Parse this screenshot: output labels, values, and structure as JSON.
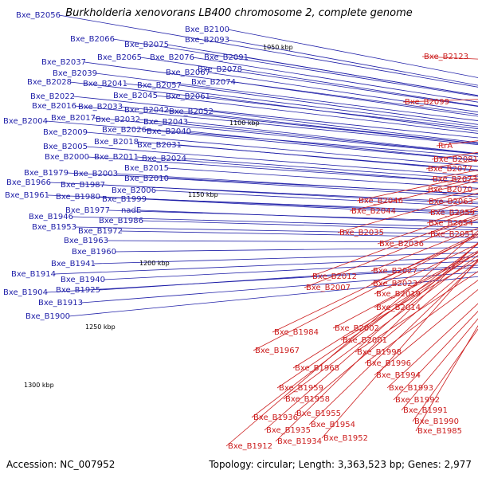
{
  "title": "Burkholderia xenovorans LB400 chromosome 2, complete genome",
  "accession": "Accession: NC_007952",
  "topology": "Topology: circular; Length: 3,363,523 bp; Genes: 2,977",
  "colors": {
    "forward": "#1f1fa8",
    "reverse": "#cc1d1d",
    "backbone": "#9a9a9a"
  },
  "ticks": [
    "1050 kbp",
    "1100 kbp",
    "1150 kbp",
    "1200 kbp",
    "1250 kbp",
    "1300 kbp"
  ],
  "forward_labels": [
    "Bxe_B2056",
    "Bxe_B2100",
    "Bxe_B2066",
    "Bxe_B2093",
    "Bxe_B2075",
    "Bxe_B2091",
    "Bxe_B2065",
    "Bxe_B2076",
    "Bxe_B2037",
    "Bxe_B2078",
    "Bxe_B2039",
    "Bxe_B2067",
    "Bxe_B2074",
    "Bxe_B2028",
    "Bxe_B2041",
    "Bxe_B2057",
    "Bxe_B2022",
    "Bxe_B2045",
    "Bxe_B2061",
    "Bxe_B2016",
    "Bxe_B2033",
    "Bxe_B2042",
    "Bxe_B2052",
    "Bxe_B2004",
    "Bxe_B2017",
    "Bxe_B2032",
    "Bxe_B2043",
    "Bxe_B2026",
    "Bxe_B2040",
    "Bxe_B2009",
    "Bxe_B2018",
    "Bxe_B2031",
    "Bxe_B2005",
    "Bxe_B2024",
    "Bxe_B2000",
    "Bxe_B2011",
    "Bxe_B2015",
    "Bxe_B1979",
    "Bxe_B2003",
    "Bxe_B2010",
    "Bxe_B1966",
    "Bxe_B1987",
    "Bxe_B2006",
    "Bxe_B1961",
    "Bxe_B1980",
    "Bxe_B1999",
    "Bxe_B1977",
    "nadE",
    "Bxe_B1946",
    "Bxe_B1986",
    "Bxe_B1953",
    "Bxe_B1972",
    "Bxe_B1963",
    "Bxe_B1960",
    "Bxe_B1941",
    "Bxe_B1914",
    "Bxe_B1940",
    "Bxe_B1925",
    "Bxe_B1904",
    "Bxe_B1913",
    "Bxe_B1900"
  ],
  "reverse_labels": [
    "Bxe_B2123",
    "Bxe_B2099",
    "ftrA",
    "Bxe_B2081",
    "Bxe_B2077",
    "Bxe_B2073",
    "Bxe_B2070",
    "Bxe_B2046",
    "Bxe_B2063",
    "Bxe_B2044",
    "Bxe_B2059",
    "Bxe_B2054",
    "Bxe_B2035",
    "Bxe_B2051",
    "Bxe_B2036",
    "Bxe_B2027",
    "Bxe_B2012",
    "Bxe_B2023",
    "Bxe_B2007",
    "Bxe_B2019",
    "Bxe_B2014",
    "Bxe_B2002",
    "Bxe_B1984",
    "Bxe_B2001",
    "Bxe_B1998",
    "Bxe_B1967",
    "Bxe_B1996",
    "Bxe_B1968",
    "Bxe_B1994",
    "Bxe_B1993",
    "Bxe_B1959",
    "Bxe_B1992",
    "Bxe_B1958",
    "Bxe_B1991",
    "Bxe_B1955",
    "Bxe_B1990",
    "Bxe_B1936",
    "Bxe_B1954",
    "Bxe_B1985",
    "Bxe_B1935",
    "Bxe_B1952",
    "Bxe_B1934",
    "Bxe_B1912"
  ]
}
